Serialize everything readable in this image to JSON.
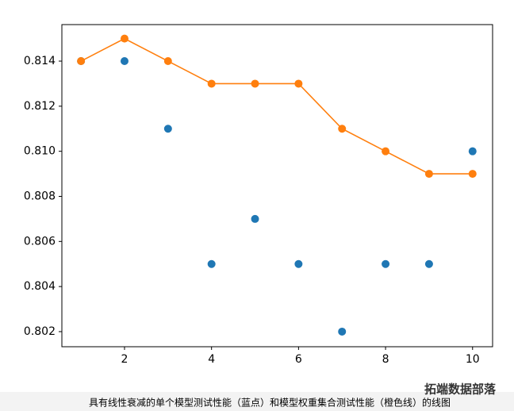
{
  "chart_data": {
    "type": "line",
    "caption": "具有线性衰减的单个模型测试性能（蓝点）和模型权重集合测试性能（橙色线）的线图",
    "watermark": "拓端数据部落",
    "x": [
      1,
      2,
      3,
      4,
      5,
      6,
      7,
      8,
      9,
      10
    ],
    "series": [
      {
        "type": "scatter",
        "color": "#1f77b4",
        "values": [
          0.814,
          0.814,
          0.811,
          0.805,
          0.807,
          0.805,
          0.802,
          0.805,
          0.805,
          0.81
        ]
      },
      {
        "type": "line",
        "color": "#ff7f0e",
        "values": [
          0.814,
          0.815,
          0.814,
          0.813,
          0.813,
          0.813,
          0.811,
          0.81,
          0.809,
          0.809
        ]
      }
    ],
    "xlim": [
      0.56,
      10.46
    ],
    "xticks": [
      2,
      4,
      6,
      8,
      10
    ],
    "ylim": [
      0.80133,
      0.81562
    ],
    "yticks": [
      0.802,
      0.804,
      0.806,
      0.808,
      {
        "value": 0.81,
        "label": "0.810"
      },
      0.812,
      0.814
    ]
  }
}
